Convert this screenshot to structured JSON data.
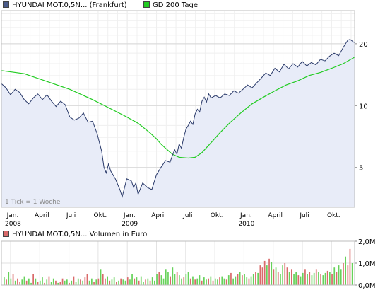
{
  "legend": {
    "price_label": "HYUNDAI MOT.0,5N... (Frankfurt)",
    "ma_label": "GD 200 Tage",
    "volume_label": "HYUNDAI MOT.0,5N... Volumen in Euro"
  },
  "colors": {
    "price_line": "#2a3a6a",
    "price_fill": "#e8ecf8",
    "ma_line": "#22cc22",
    "vol_up": "#66d25a",
    "vol_down": "#d96a6a",
    "grid": "#e2e2e2"
  },
  "chart_data": [
    {
      "type": "line",
      "note_label": "1 Tick = 1 Woche",
      "x_tick_labels": [
        "Jan.",
        "April",
        "Juli",
        "Okt.",
        "Jan.",
        "April",
        "Juli",
        "Okt.",
        "Jan.",
        "April",
        "Juli",
        "Okt."
      ],
      "x_year_labels": [
        "2008",
        "2009",
        "2010"
      ],
      "y_ticks": [
        5,
        10,
        20
      ],
      "y_scale": "log",
      "ylim": [
        3.2,
        29
      ],
      "x_range_weeks": [
        0,
        155
      ],
      "series": [
        {
          "name": "HYUNDAI MOT.0,5N... (Frankfurt)",
          "role": "price",
          "points": [
            [
              0,
              12.8
            ],
            [
              2,
              12.2
            ],
            [
              4,
              11.3
            ],
            [
              6,
              12.0
            ],
            [
              8,
              11.6
            ],
            [
              10,
              10.7
            ],
            [
              12,
              10.2
            ],
            [
              14,
              10.9
            ],
            [
              16,
              11.4
            ],
            [
              18,
              10.7
            ],
            [
              20,
              11.3
            ],
            [
              22,
              10.5
            ],
            [
              24,
              9.9
            ],
            [
              26,
              10.5
            ],
            [
              28,
              10.1
            ],
            [
              30,
              8.8
            ],
            [
              32,
              8.5
            ],
            [
              34,
              8.7
            ],
            [
              36,
              9.2
            ],
            [
              38,
              8.3
            ],
            [
              40,
              8.4
            ],
            [
              42,
              7.3
            ],
            [
              44,
              6.0
            ],
            [
              45,
              5.0
            ],
            [
              46,
              4.7
            ],
            [
              47,
              5.2
            ],
            [
              48,
              4.8
            ],
            [
              50,
              4.4
            ],
            [
              52,
              3.9
            ],
            [
              53,
              3.6
            ],
            [
              55,
              4.4
            ],
            [
              57,
              4.3
            ],
            [
              58,
              4.0
            ],
            [
              59,
              4.2
            ],
            [
              60,
              3.7
            ],
            [
              62,
              4.2
            ],
            [
              64,
              4.0
            ],
            [
              66,
              3.9
            ],
            [
              68,
              4.6
            ],
            [
              70,
              5.0
            ],
            [
              72,
              5.4
            ],
            [
              74,
              5.3
            ],
            [
              75,
              5.7
            ],
            [
              76,
              6.1
            ],
            [
              77,
              5.8
            ],
            [
              78,
              6.5
            ],
            [
              79,
              6.2
            ],
            [
              80,
              7.0
            ],
            [
              81,
              7.7
            ],
            [
              82,
              8.0
            ],
            [
              83,
              8.4
            ],
            [
              84,
              8.1
            ],
            [
              85,
              9.1
            ],
            [
              86,
              9.6
            ],
            [
              87,
              9.3
            ],
            [
              88,
              10.5
            ],
            [
              89,
              11.0
            ],
            [
              90,
              10.4
            ],
            [
              91,
              11.4
            ],
            [
              92,
              10.9
            ],
            [
              94,
              11.2
            ],
            [
              96,
              10.9
            ],
            [
              98,
              11.4
            ],
            [
              100,
              11.2
            ],
            [
              102,
              11.8
            ],
            [
              104,
              11.5
            ],
            [
              106,
              12.0
            ],
            [
              108,
              12.6
            ],
            [
              110,
              12.2
            ],
            [
              112,
              12.9
            ],
            [
              114,
              13.6
            ],
            [
              116,
              14.4
            ],
            [
              118,
              14.0
            ],
            [
              120,
              15.2
            ],
            [
              122,
              14.6
            ],
            [
              124,
              15.9
            ],
            [
              126,
              15.1
            ],
            [
              128,
              16.0
            ],
            [
              130,
              15.4
            ],
            [
              132,
              16.4
            ],
            [
              134,
              15.6
            ],
            [
              136,
              16.2
            ],
            [
              138,
              15.8
            ],
            [
              140,
              16.8
            ],
            [
              142,
              16.5
            ],
            [
              144,
              17.4
            ],
            [
              146,
              18.0
            ],
            [
              148,
              17.5
            ],
            [
              150,
              19.2
            ],
            [
              152,
              20.8
            ],
            [
              153,
              21.0
            ],
            [
              155,
              20.2
            ]
          ]
        },
        {
          "name": "GD 200 Tage",
          "role": "moving_average",
          "points": [
            [
              0,
              14.8
            ],
            [
              10,
              14.3
            ],
            [
              20,
              13.1
            ],
            [
              30,
              12.0
            ],
            [
              40,
              10.7
            ],
            [
              50,
              9.4
            ],
            [
              55,
              8.8
            ],
            [
              60,
              8.2
            ],
            [
              65,
              7.4
            ],
            [
              68,
              6.9
            ],
            [
              70,
              6.5
            ],
            [
              72,
              6.2
            ],
            [
              75,
              5.8
            ],
            [
              78,
              5.6
            ],
            [
              82,
              5.55
            ],
            [
              85,
              5.6
            ],
            [
              88,
              5.9
            ],
            [
              92,
              6.6
            ],
            [
              96,
              7.4
            ],
            [
              100,
              8.2
            ],
            [
              105,
              9.2
            ],
            [
              110,
              10.2
            ],
            [
              115,
              11.0
            ],
            [
              120,
              11.8
            ],
            [
              125,
              12.6
            ],
            [
              130,
              13.2
            ],
            [
              135,
              14.0
            ],
            [
              140,
              14.5
            ],
            [
              145,
              15.2
            ],
            [
              150,
              16.0
            ],
            [
              155,
              17.2
            ]
          ]
        }
      ]
    },
    {
      "type": "bar",
      "y_tick_labels": [
        "2,0M",
        "1,0M",
        "0,0M"
      ],
      "ylim": [
        0,
        2.0
      ],
      "unit": "Mio. Euro",
      "values": [
        0.35,
        0.25,
        0.6,
        0.3,
        0.5,
        0.2,
        0.3,
        0.15,
        0.25,
        0.4,
        0.2,
        0.3,
        0.1,
        0.5,
        0.3,
        0.15,
        0.2,
        0.35,
        0.1,
        0.25,
        0.4,
        0.15,
        0.3,
        0.2,
        0.1,
        0.15,
        0.3,
        0.2,
        0.25,
        0.1,
        0.2,
        0.4,
        0.15,
        0.3,
        0.25,
        0.2,
        0.35,
        0.5,
        0.2,
        0.3,
        0.15,
        0.25,
        0.3,
        0.7,
        0.5,
        0.3,
        0.4,
        0.2,
        0.25,
        0.35,
        0.15,
        0.2,
        0.3,
        0.25,
        0.2,
        0.35,
        0.25,
        0.5,
        0.3,
        0.35,
        0.2,
        0.4,
        0.15,
        0.25,
        0.3,
        0.2,
        0.35,
        0.2,
        0.5,
        0.6,
        0.45,
        0.3,
        0.7,
        0.6,
        0.4,
        0.8,
        0.5,
        0.6,
        0.45,
        0.3,
        0.35,
        0.5,
        0.6,
        0.3,
        0.4,
        0.25,
        0.3,
        0.45,
        0.2,
        0.35,
        0.25,
        0.3,
        0.4,
        0.2,
        0.3,
        0.25,
        0.35,
        0.4,
        0.3,
        0.25,
        0.45,
        0.55,
        0.3,
        0.4,
        0.5,
        0.6,
        0.45,
        0.5,
        0.35,
        0.3,
        0.4,
        0.5,
        0.6,
        0.55,
        0.9,
        0.8,
        1.1,
        0.9,
        1.2,
        1.05,
        0.7,
        0.8,
        0.6,
        0.5,
        0.9,
        1.0,
        0.8,
        0.6,
        0.7,
        0.5,
        0.6,
        0.45,
        0.4,
        0.55,
        0.7,
        0.5,
        0.6,
        0.45,
        0.55,
        0.7,
        0.6,
        0.5,
        0.45,
        0.55,
        0.65,
        0.6,
        0.5,
        0.8,
        0.6,
        0.9,
        0.7,
        1.0,
        1.3,
        0.9,
        1.65,
        1.0
      ],
      "up": [
        1,
        0,
        1,
        1,
        0,
        1,
        0,
        0,
        1,
        1,
        0,
        1,
        1,
        0,
        1,
        0,
        1,
        1,
        0,
        1,
        0,
        1,
        1,
        0,
        1,
        0,
        0,
        1,
        1,
        0,
        1,
        0,
        1,
        1,
        0,
        1,
        0,
        0,
        1,
        1,
        0,
        1,
        0,
        1,
        0,
        0,
        1,
        0,
        1,
        1,
        0,
        1,
        0,
        1,
        1,
        0,
        1,
        1,
        0,
        1,
        0,
        1,
        1,
        0,
        1,
        0,
        1,
        1,
        1,
        0,
        1,
        1,
        1,
        1,
        0,
        1,
        1,
        0,
        1,
        1,
        0,
        1,
        1,
        0,
        1,
        0,
        1,
        1,
        0,
        1,
        1,
        0,
        1,
        0,
        1,
        1,
        0,
        1,
        1,
        0,
        1,
        0,
        1,
        1,
        0,
        1,
        0,
        1,
        1,
        0,
        1,
        1,
        0,
        1,
        0,
        0,
        0,
        1,
        0,
        1,
        0,
        1,
        0,
        1,
        1,
        0,
        0,
        1,
        0,
        1,
        1,
        0,
        1,
        1,
        0,
        1,
        0,
        1,
        1,
        0,
        1,
        0,
        1,
        1,
        0,
        1,
        0,
        1,
        0,
        1,
        1,
        0,
        1,
        0,
        0,
        1
      ]
    }
  ]
}
